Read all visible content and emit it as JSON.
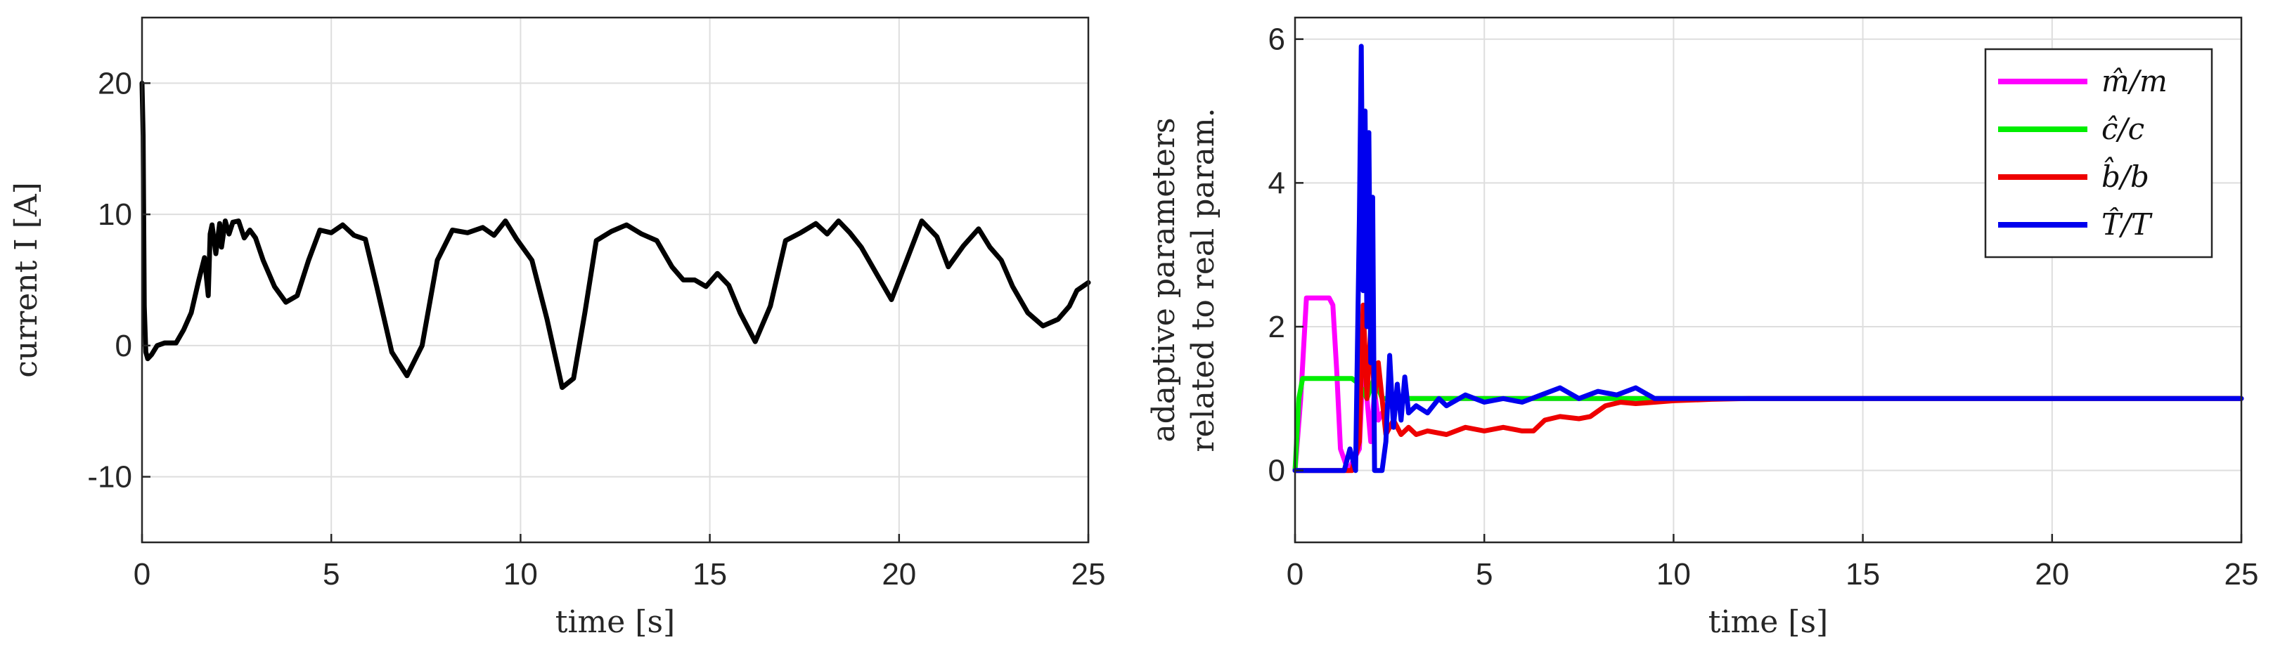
{
  "chart_data": [
    {
      "type": "line",
      "xlabel": "time [s]",
      "ylabel": "current I [A]",
      "xlim": [
        0,
        25
      ],
      "ylim": [
        -15,
        25
      ],
      "xticks": [
        0,
        5,
        10,
        15,
        20,
        25
      ],
      "yticks": [
        -10,
        0,
        10,
        20
      ],
      "xtick_labels": [
        "0",
        "5",
        "10",
        "15",
        "20",
        "25"
      ],
      "ytick_labels": [
        "-10",
        "0",
        "10",
        "20"
      ],
      "grid": true,
      "series": [
        {
          "color": "#000000",
          "x": [
            0,
            0.03,
            0.06,
            0.1,
            0.15,
            0.25,
            0.4,
            0.6,
            0.9,
            1.1,
            1.3,
            1.5,
            1.65,
            1.75,
            1.8,
            1.85,
            1.95,
            2.05,
            2.1,
            2.2,
            2.3,
            2.4,
            2.55,
            2.7,
            2.85,
            3.0,
            3.2,
            3.5,
            3.8,
            4.1,
            4.4,
            4.7,
            5.0,
            5.3,
            5.6,
            5.9,
            6.2,
            6.6,
            7.0,
            7.4,
            7.8,
            8.2,
            8.6,
            9.0,
            9.3,
            9.6,
            9.9,
            10.3,
            10.7,
            11.1,
            11.4,
            11.7,
            12.0,
            12.4,
            12.8,
            13.2,
            13.6,
            14.0,
            14.3,
            14.6,
            14.9,
            15.2,
            15.5,
            15.8,
            16.2,
            16.6,
            17.0,
            17.4,
            17.8,
            18.1,
            18.4,
            18.7,
            19.0,
            19.4,
            19.8,
            20.2,
            20.6,
            21.0,
            21.3,
            21.7,
            22.1,
            22.4,
            22.7,
            23.0,
            23.4,
            23.8,
            24.2,
            24.5,
            24.7,
            25.0
          ],
          "y": [
            20,
            16,
            3,
            -0.5,
            -1,
            -0.7,
            0,
            0.2,
            0.2,
            1.2,
            2.5,
            5,
            6.7,
            3.8,
            8.5,
            9.2,
            7,
            9.3,
            7.5,
            9.5,
            8.5,
            9.4,
            9.5,
            8.2,
            8.8,
            8.2,
            6.5,
            4.5,
            3.3,
            3.8,
            6.5,
            8.8,
            8.6,
            9.2,
            8.4,
            8.1,
            4.5,
            -0.5,
            -2.3,
            0,
            6.5,
            8.8,
            8.6,
            9.0,
            8.4,
            9.5,
            8.1,
            6.5,
            2,
            -3.2,
            -2.5,
            2.5,
            8.0,
            8.7,
            9.2,
            8.5,
            8.0,
            6.0,
            5.0,
            5.0,
            4.5,
            5.5,
            4.6,
            2.5,
            0.3,
            3.0,
            8.0,
            8.6,
            9.3,
            8.5,
            9.5,
            8.6,
            7.5,
            5.5,
            3.5,
            6.5,
            9.5,
            8.3,
            6.0,
            7.6,
            8.9,
            7.5,
            6.5,
            4.5,
            2.5,
            1.5,
            2.0,
            3.0,
            4.2,
            4.8
          ]
        }
      ]
    },
    {
      "type": "line",
      "xlabel": "time [s]",
      "ylabel": "adaptive parameters related to real param.",
      "xlim": [
        0,
        25
      ],
      "ylim": [
        -1,
        6.3
      ],
      "xticks": [
        0,
        5,
        10,
        15,
        20,
        25
      ],
      "yticks": [
        0,
        2,
        4,
        6
      ],
      "xtick_labels": [
        "0",
        "5",
        "10",
        "15",
        "20",
        "25"
      ],
      "ytick_labels": [
        "0",
        "2",
        "4",
        "6"
      ],
      "grid": true,
      "legend": "top-right",
      "series": [
        {
          "name": "m̂/m",
          "color": "#ff00ff",
          "x": [
            0,
            0.15,
            0.3,
            0.5,
            0.9,
            1.0,
            1.1,
            1.2,
            1.4,
            1.7,
            1.8,
            1.9,
            2.0,
            2.1,
            2.2,
            2.3,
            2.5,
            3.0,
            4.0,
            6.0,
            8.0,
            25
          ],
          "y": [
            0,
            1.0,
            2.4,
            2.4,
            2.4,
            2.3,
            1.4,
            0.3,
            0,
            0.3,
            1.5,
            1.0,
            0.4,
            1.1,
            0.7,
            0.8,
            0.9,
            1.0,
            1.0,
            1.0,
            1.0,
            1.0
          ]
        },
        {
          "name": "ĉ/c",
          "color": "#00ee00",
          "x": [
            0,
            0.1,
            0.2,
            1.5,
            1.7,
            1.9,
            2.1,
            2.3,
            2.6,
            3.0,
            4.0,
            6.0,
            8.0,
            25
          ],
          "y": [
            0,
            1.0,
            1.28,
            1.28,
            1.2,
            1.0,
            1.3,
            1.0,
            1.0,
            1.0,
            1.0,
            1.0,
            1.0,
            1.0
          ]
        },
        {
          "name": "b̂/b",
          "color": "#ee0000",
          "x": [
            0,
            1.5,
            1.7,
            1.8,
            1.9,
            2.0,
            2.1,
            2.2,
            2.4,
            2.6,
            2.8,
            3.0,
            3.2,
            3.5,
            4.0,
            4.5,
            5.0,
            5.5,
            6.0,
            6.3,
            6.6,
            7.0,
            7.5,
            7.8,
            8.2,
            8.6,
            9.0,
            9.5,
            10.0,
            11.0,
            12.0,
            25
          ],
          "y": [
            0,
            0,
            0.4,
            2.3,
            1.0,
            2.0,
            1.0,
            1.5,
            0.5,
            0.7,
            0.5,
            0.6,
            0.5,
            0.55,
            0.5,
            0.6,
            0.55,
            0.6,
            0.55,
            0.55,
            0.7,
            0.75,
            0.72,
            0.75,
            0.9,
            0.95,
            0.93,
            0.95,
            0.97,
            0.99,
            1.0,
            1.0
          ]
        },
        {
          "name": "T̂/T",
          "color": "#0000ee",
          "x": [
            0,
            1.3,
            1.45,
            1.6,
            1.7,
            1.75,
            1.8,
            1.85,
            1.9,
            1.95,
            2.0,
            2.05,
            2.1,
            2.15,
            2.2,
            2.3,
            2.4,
            2.5,
            2.6,
            2.7,
            2.8,
            2.9,
            3.0,
            3.2,
            3.5,
            3.8,
            4.0,
            4.5,
            5.0,
            5.5,
            6.0,
            6.5,
            7.0,
            7.5,
            8.0,
            8.5,
            9.0,
            9.5,
            10.0,
            11.0,
            12.0,
            25
          ],
          "y": [
            0,
            0,
            0.3,
            0,
            3.5,
            5.9,
            2.5,
            5.0,
            2.0,
            4.7,
            1.5,
            3.8,
            0,
            0,
            0,
            0,
            0.4,
            1.6,
            0.6,
            1.2,
            0.7,
            1.3,
            0.8,
            0.9,
            0.8,
            1.0,
            0.9,
            1.05,
            0.95,
            1.0,
            0.95,
            1.05,
            1.15,
            1.0,
            1.1,
            1.05,
            1.15,
            1.0,
            1.0,
            1.0,
            1.0,
            1.0
          ]
        }
      ]
    }
  ]
}
